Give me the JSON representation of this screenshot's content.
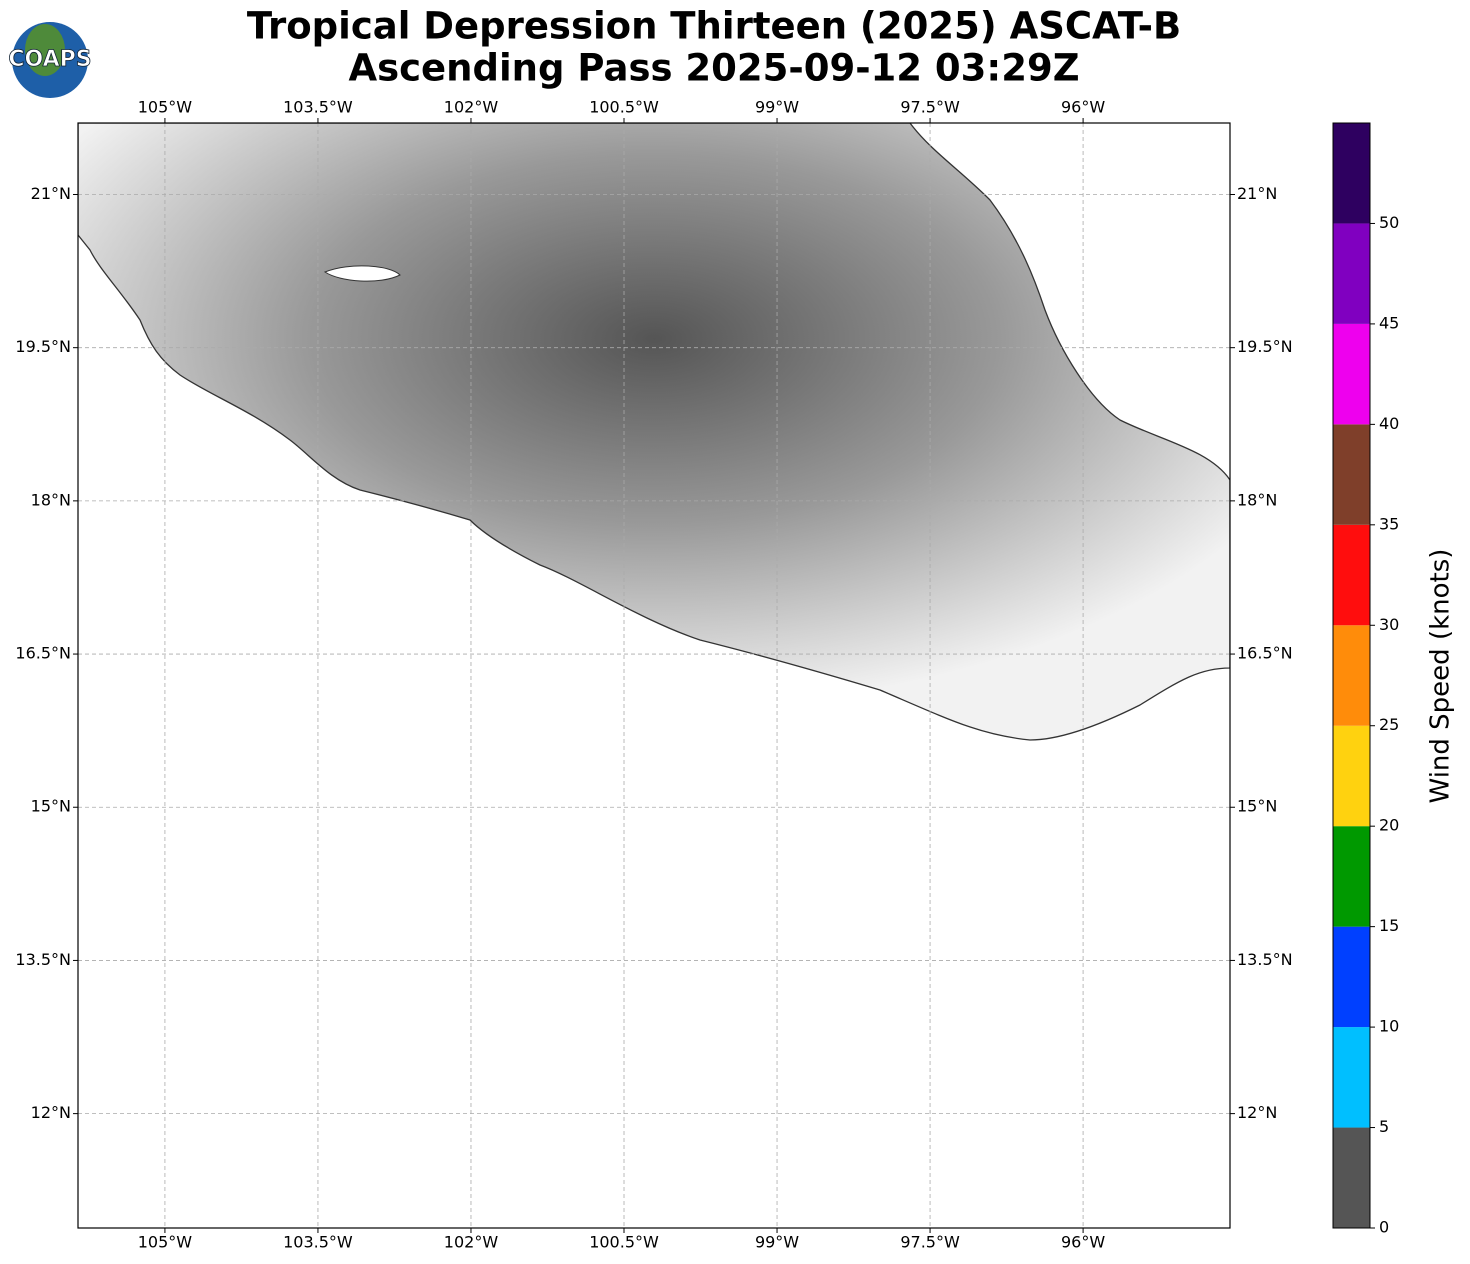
{
  "logo": {
    "text": "COAPS"
  },
  "title": [
    "Tropical Depression Thirteen (2025) ASCAT-B",
    "Ascending Pass 2025-09-12 03:29Z"
  ],
  "map": {
    "xlim": [
      -105.852,
      -94.56
    ],
    "ylim": [
      10.88,
      21.7
    ],
    "grid": true,
    "xticks": [
      {
        "value": -105,
        "label": "105°W"
      },
      {
        "value": -103.5,
        "label": "103.5°W"
      },
      {
        "value": -102,
        "label": "102°W"
      },
      {
        "value": -100.5,
        "label": "100.5°W"
      },
      {
        "value": -99,
        "label": "99°W"
      },
      {
        "value": -97.5,
        "label": "97.5°W"
      },
      {
        "value": -96,
        "label": "96°W"
      }
    ],
    "yticks": [
      {
        "value": 21,
        "label": "21°N"
      },
      {
        "value": 19.5,
        "label": "19.5°N"
      },
      {
        "value": 18,
        "label": "18°N"
      },
      {
        "value": 16.5,
        "label": "16.5°N"
      },
      {
        "value": 15,
        "label": "15°N"
      },
      {
        "value": 13.5,
        "label": "13.5°N"
      },
      {
        "value": 12,
        "label": "12°N"
      }
    ]
  },
  "colorbar": {
    "label": "Wind Speed (knots)",
    "ylim": [
      0,
      55
    ],
    "bounds": [
      0,
      5,
      10,
      15,
      20,
      25,
      30,
      35,
      40,
      45,
      50,
      55
    ],
    "colors": [
      "#555555",
      "#00bfff",
      "#0040ff",
      "#009900",
      "#ffd20f",
      "#ff8c0a",
      "#ff0d0d",
      "#7f3f2a",
      "#ee00ee",
      "#8000c0",
      "#2e0060"
    ],
    "ticks": [
      0,
      5,
      10,
      15,
      20,
      25,
      30,
      35,
      40,
      45,
      50
    ]
  }
}
